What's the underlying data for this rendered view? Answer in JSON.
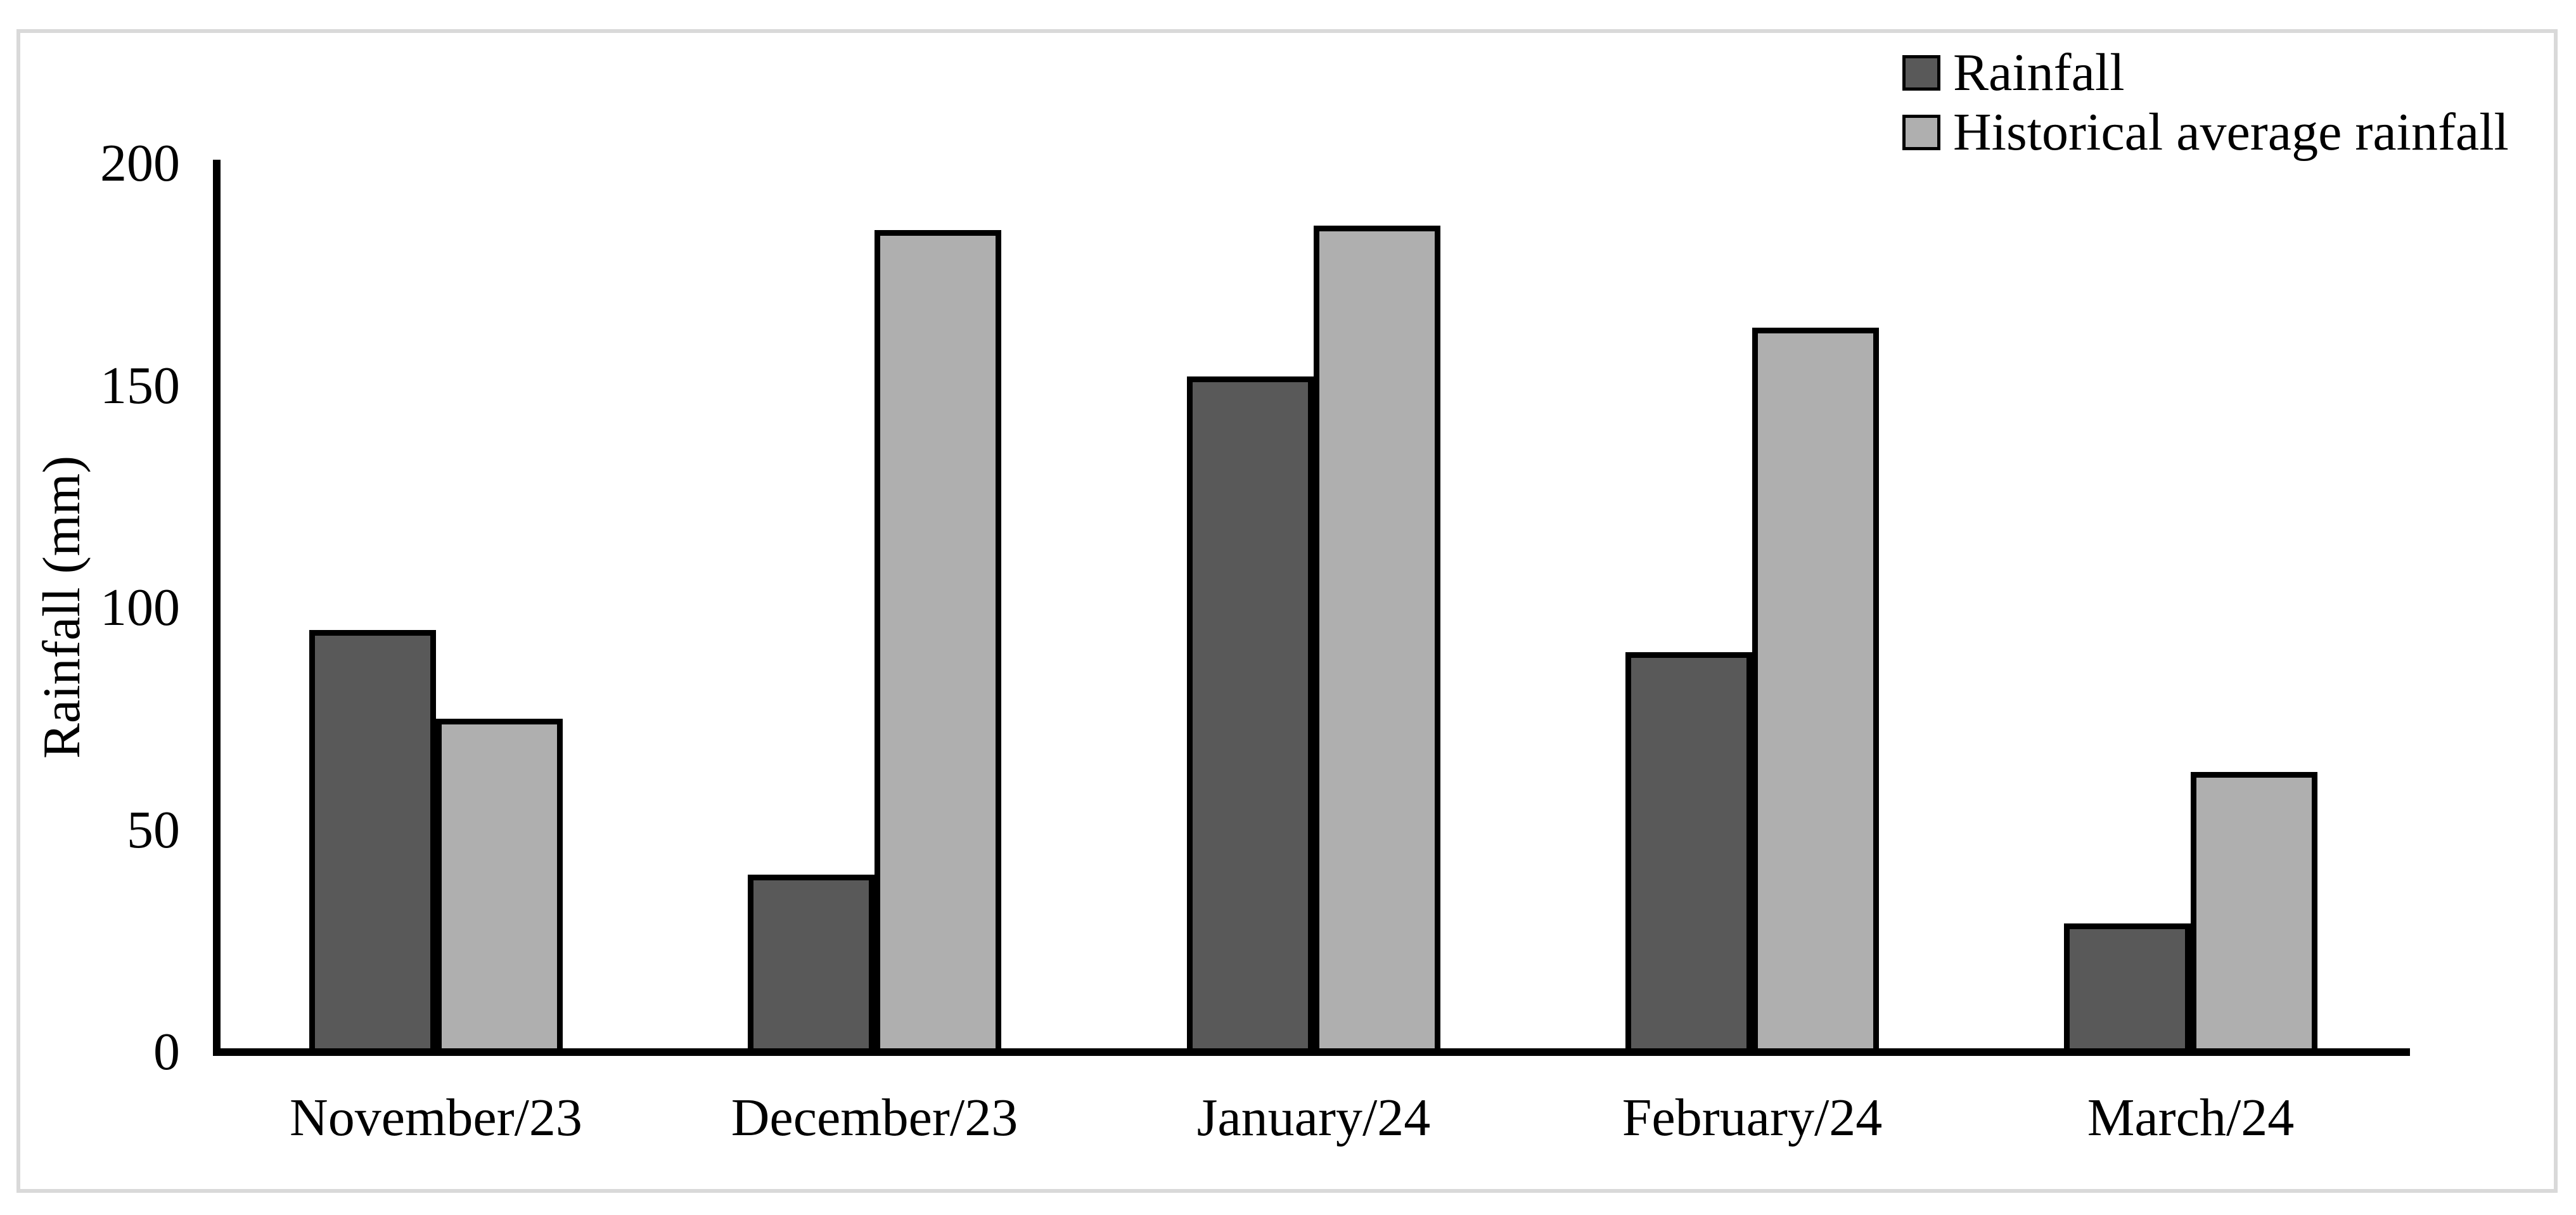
{
  "chart_data": {
    "type": "bar",
    "title": "",
    "xlabel": "",
    "ylabel": "Rainfall (mm)",
    "categories": [
      "November/23",
      "December/23",
      "January/24",
      "February/24",
      "March/24"
    ],
    "series": [
      {
        "name": "Rainfall",
        "color": "#595959",
        "values": [
          95,
          40,
          152,
          90,
          29
        ]
      },
      {
        "name": "Historical average rainfall",
        "color": "#afafaf",
        "values": [
          75,
          185,
          186,
          163,
          63
        ]
      }
    ],
    "ylim": [
      0,
      200
    ],
    "yticks": [
      0,
      50,
      100,
      150,
      200
    ],
    "grid": false,
    "legend_position": "top-right"
  },
  "colors": {
    "bar_border": "#000000",
    "axis": "#000000",
    "text": "#000000",
    "frame_border": "#d9d9d9",
    "background": "#ffffff"
  }
}
